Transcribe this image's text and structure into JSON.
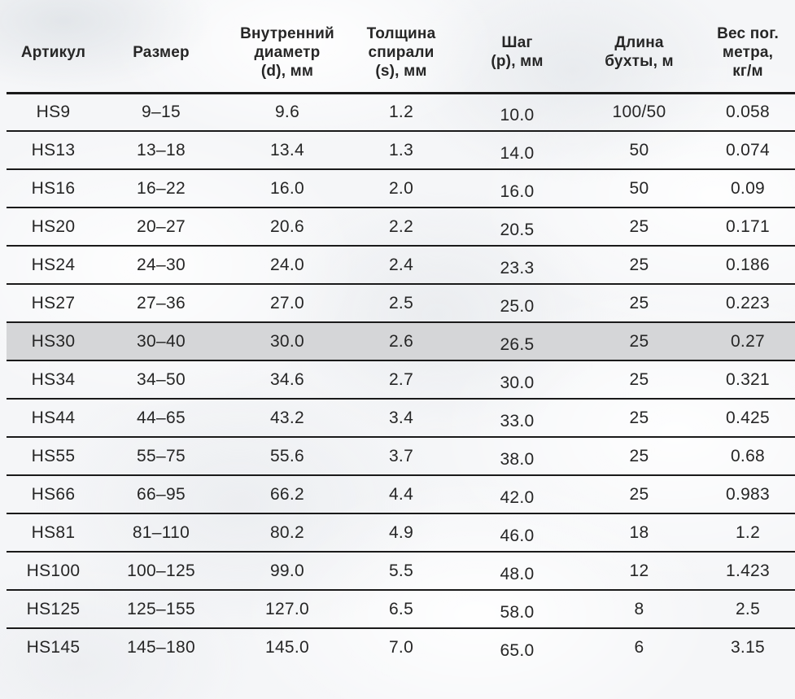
{
  "colors": {
    "text": "#262626",
    "border": "#1a1a1a",
    "row_highlight": "#d5d6d8",
    "background": "#f5f6f8"
  },
  "table": {
    "columns": [
      {
        "key": "article",
        "label": "Артикул"
      },
      {
        "key": "size",
        "label": "Размер"
      },
      {
        "key": "inner_diameter",
        "label": "Внутренний\nдиаметр\n(d), мм"
      },
      {
        "key": "spiral_thickness",
        "label": "Толщина\nспирали\n(s), мм"
      },
      {
        "key": "pitch",
        "label": "Шаг\n(p), мм"
      },
      {
        "key": "coil_length",
        "label": "Длина\nбухты, м"
      },
      {
        "key": "weight",
        "label": "Вес пог.\nметра,\nкг/м"
      }
    ],
    "highlighted_article": "HS30",
    "rows": [
      {
        "article": "HS9",
        "size": "9–15",
        "inner_diameter": "9.6",
        "spiral_thickness": "1.2",
        "pitch": "10.0",
        "coil_length": "100/50",
        "weight": "0.058"
      },
      {
        "article": "HS13",
        "size": "13–18",
        "inner_diameter": "13.4",
        "spiral_thickness": "1.3",
        "pitch": "14.0",
        "coil_length": "50",
        "weight": "0.074"
      },
      {
        "article": "HS16",
        "size": "16–22",
        "inner_diameter": "16.0",
        "spiral_thickness": "2.0",
        "pitch": "16.0",
        "coil_length": "50",
        "weight": "0.09"
      },
      {
        "article": "HS20",
        "size": "20–27",
        "inner_diameter": "20.6",
        "spiral_thickness": "2.2",
        "pitch": "20.5",
        "coil_length": "25",
        "weight": "0.171"
      },
      {
        "article": "HS24",
        "size": "24–30",
        "inner_diameter": "24.0",
        "spiral_thickness": "2.4",
        "pitch": "23.3",
        "coil_length": "25",
        "weight": "0.186"
      },
      {
        "article": "HS27",
        "size": "27–36",
        "inner_diameter": "27.0",
        "spiral_thickness": "2.5",
        "pitch": "25.0",
        "coil_length": "25",
        "weight": "0.223"
      },
      {
        "article": "HS30",
        "size": "30–40",
        "inner_diameter": "30.0",
        "spiral_thickness": "2.6",
        "pitch": "26.5",
        "coil_length": "25",
        "weight": "0.27"
      },
      {
        "article": "HS34",
        "size": "34–50",
        "inner_diameter": "34.6",
        "spiral_thickness": "2.7",
        "pitch": "30.0",
        "coil_length": "25",
        "weight": "0.321"
      },
      {
        "article": "HS44",
        "size": "44–65",
        "inner_diameter": "43.2",
        "spiral_thickness": "3.4",
        "pitch": "33.0",
        "coil_length": "25",
        "weight": "0.425"
      },
      {
        "article": "HS55",
        "size": "55–75",
        "inner_diameter": "55.6",
        "spiral_thickness": "3.7",
        "pitch": "38.0",
        "coil_length": "25",
        "weight": "0.68"
      },
      {
        "article": "HS66",
        "size": "66–95",
        "inner_diameter": "66.2",
        "spiral_thickness": "4.4",
        "pitch": "42.0",
        "coil_length": "25",
        "weight": "0.983"
      },
      {
        "article": "HS81",
        "size": "81–110",
        "inner_diameter": "80.2",
        "spiral_thickness": "4.9",
        "pitch": "46.0",
        "coil_length": "18",
        "weight": "1.2"
      },
      {
        "article": "HS100",
        "size": "100–125",
        "inner_diameter": "99.0",
        "spiral_thickness": "5.5",
        "pitch": "48.0",
        "coil_length": "12",
        "weight": "1.423"
      },
      {
        "article": "HS125",
        "size": "125–155",
        "inner_diameter": "127.0",
        "spiral_thickness": "6.5",
        "pitch": "58.0",
        "coil_length": "8",
        "weight": "2.5"
      },
      {
        "article": "HS145",
        "size": "145–180",
        "inner_diameter": "145.0",
        "spiral_thickness": "7.0",
        "pitch": "65.0",
        "coil_length": "6",
        "weight": "3.15"
      }
    ]
  }
}
